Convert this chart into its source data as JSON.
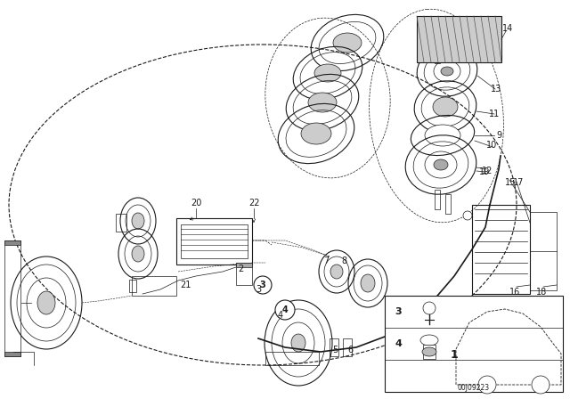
{
  "bg_color": "#ffffff",
  "line_color": "#1a1a1a",
  "diagram_code": "00J09223",
  "figsize": [
    6.4,
    4.48
  ],
  "dpi": 100
}
